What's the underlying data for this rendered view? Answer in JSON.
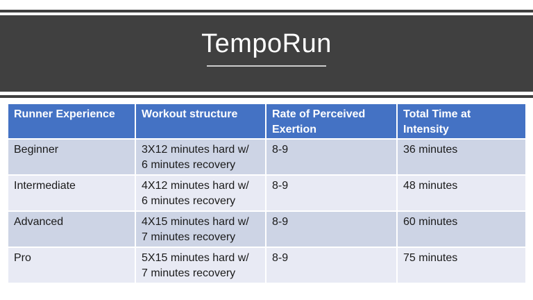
{
  "slide": {
    "title": "TempoRun",
    "colors": {
      "band": "#404040",
      "header_bg": "#4472C4",
      "row_dark": "#CDD4E5",
      "row_light": "#E8EAF4",
      "header_text": "#FFFFFF",
      "body_text": "#1A1A1A"
    }
  },
  "table": {
    "headers": [
      "Runner Experience",
      "Workout structure",
      "Rate of Perceived\nExertion",
      "Total Time at\nIntensity"
    ],
    "rows": [
      {
        "cells": [
          "Beginner",
          "3X12 minutes hard w/\n6 minutes recovery",
          "8-9",
          "36 minutes"
        ]
      },
      {
        "cells": [
          "Intermediate",
          "4X12 minutes hard w/\n6 minutes recovery",
          "8-9",
          "48 minutes"
        ]
      },
      {
        "cells": [
          "Advanced",
          "4X15 minutes hard w/\n7 minutes recovery",
          "8-9",
          "60 minutes"
        ]
      },
      {
        "cells": [
          "Pro",
          "5X15 minutes hard w/\n7 minutes recovery",
          "8-9",
          "75 minutes"
        ]
      }
    ]
  }
}
